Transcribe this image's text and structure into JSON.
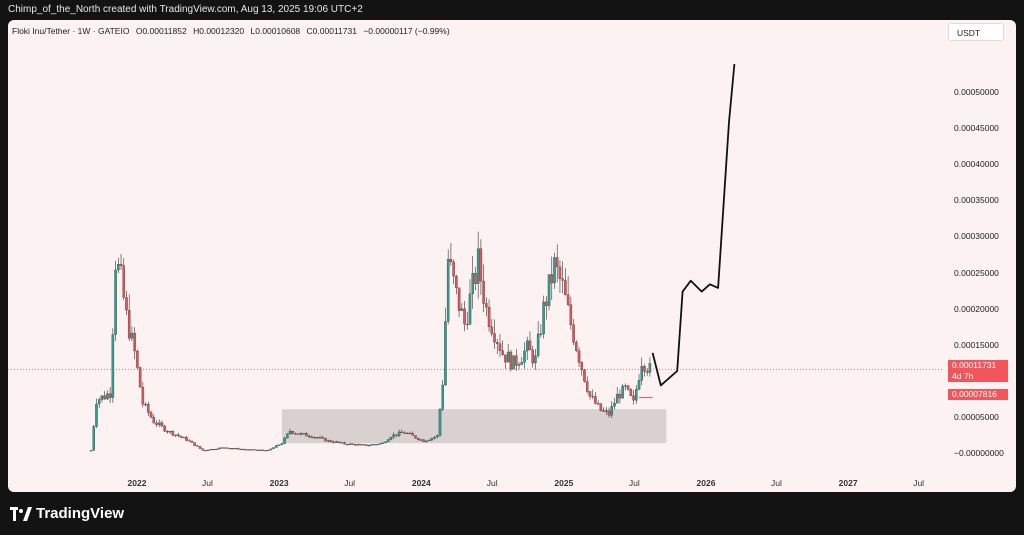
{
  "header": {
    "attribution": "Chimp_of_the_North created with TradingView.com, Aug 13, 2025 19:06 UTC+2"
  },
  "legend": {
    "symbol": "Floki Inu/Tether · 1W · GATEIO",
    "open": "O0.00011852",
    "high": "H0.00012320",
    "low": "L0.00010608",
    "close": "C0.00011731",
    "change": "−0.00000117 (−0.99%)"
  },
  "currency_button": "USDT",
  "price_tag": {
    "value": "0.00011731",
    "countdown": "4d 7h",
    "second": "0.00007816"
  },
  "brand": {
    "name": "TradingView"
  },
  "colors": {
    "up": "#2f9e8e",
    "down": "#e05358",
    "box": "#d5cccc",
    "background": "#fdf2f2"
  },
  "chart_data": {
    "type": "candlestick",
    "y_axis": {
      "range": [
        0,
        0.00055
      ],
      "ticks": [
        "0.00050000",
        "0.00045000",
        "0.00040000",
        "0.00035000",
        "0.00030000",
        "0.00025000",
        "0.00020000",
        "0.00015000",
        "0.00005000",
        "−0.00000000"
      ]
    },
    "x_axis": {
      "ticks": [
        {
          "label": "2022",
          "bold": true,
          "date": "2022-01-01"
        },
        {
          "label": "Jul",
          "bold": false,
          "date": "2022-07-01"
        },
        {
          "label": "2023",
          "bold": true,
          "date": "2023-01-01"
        },
        {
          "label": "Jul",
          "bold": false,
          "date": "2023-07-01"
        },
        {
          "label": "2024",
          "bold": true,
          "date": "2024-01-01"
        },
        {
          "label": "Jul",
          "bold": false,
          "date": "2024-07-01"
        },
        {
          "label": "2025",
          "bold": true,
          "date": "2025-01-01"
        },
        {
          "label": "Jul",
          "bold": false,
          "date": "2025-07-01"
        },
        {
          "label": "2026",
          "bold": true,
          "date": "2026-01-01"
        },
        {
          "label": "Jul",
          "bold": false,
          "date": "2026-07-01"
        },
        {
          "label": "2027",
          "bold": true,
          "date": "2027-01-01"
        },
        {
          "label": "Jul",
          "bold": false,
          "date": "2027-07-01"
        }
      ]
    },
    "series": [
      {
        "kind": "close_path",
        "points": [
          [
            "2021-09-05",
            5e-06
          ],
          [
            "2021-09-19",
            7.5e-05
          ],
          [
            "2021-10-10",
            8e-05
          ],
          [
            "2021-10-24",
            8.5e-05
          ],
          [
            "2021-11-07",
            0.00027
          ],
          [
            "2021-11-21",
            0.00024
          ],
          [
            "2021-12-05",
            0.00019
          ],
          [
            "2021-12-26",
            0.00014
          ],
          [
            "2022-01-16",
            7e-05
          ],
          [
            "2022-02-13",
            4.5e-05
          ],
          [
            "2022-03-20",
            3.2e-05
          ],
          [
            "2022-05-08",
            2e-05
          ],
          [
            "2022-06-19",
            5e-06
          ],
          [
            "2022-08-14",
            9e-06
          ],
          [
            "2022-10-09",
            6e-06
          ],
          [
            "2022-12-04",
            5e-06
          ],
          [
            "2023-01-08",
            1.5e-05
          ],
          [
            "2023-01-29",
            3.2e-05
          ],
          [
            "2023-02-19",
            2.8e-05
          ],
          [
            "2023-03-26",
            2.5e-05
          ],
          [
            "2023-05-07",
            1.8e-05
          ],
          [
            "2023-06-18",
            1.4e-05
          ],
          [
            "2023-08-13",
            1.2e-05
          ],
          [
            "2023-09-24",
            1.5e-05
          ],
          [
            "2023-10-15",
            2.5e-05
          ],
          [
            "2023-11-19",
            3e-05
          ],
          [
            "2024-01-07",
            1.8e-05
          ],
          [
            "2024-02-11",
            2.5e-05
          ],
          [
            "2024-02-25",
            0.0001
          ],
          [
            "2024-03-10",
            0.00027
          ],
          [
            "2024-03-31",
            0.00022
          ],
          [
            "2024-04-21",
            0.00018
          ],
          [
            "2024-05-26",
            0.000265
          ],
          [
            "2024-06-16",
            0.0002
          ],
          [
            "2024-07-28",
            0.00014
          ],
          [
            "2024-08-25",
            0.000125
          ],
          [
            "2024-09-29",
            0.000145
          ],
          [
            "2024-10-20",
            0.00013
          ],
          [
            "2024-11-10",
            0.0002
          ],
          [
            "2024-12-08",
            0.00026
          ],
          [
            "2024-12-29",
            0.00023
          ],
          [
            "2025-01-19",
            0.00018
          ],
          [
            "2025-02-16",
            0.00012
          ],
          [
            "2025-03-09",
            8e-05
          ],
          [
            "2025-04-06",
            6e-05
          ],
          [
            "2025-04-27",
            5.5e-05
          ],
          [
            "2025-05-18",
            8e-05
          ],
          [
            "2025-06-08",
            9e-05
          ],
          [
            "2025-06-29",
            7e-05
          ],
          [
            "2025-07-20",
            0.00013
          ],
          [
            "2025-08-10",
            0.000117
          ]
        ]
      },
      {
        "kind": "projection",
        "points": [
          [
            "2025-08-17",
            0.00014
          ],
          [
            "2025-09-07",
            9.5e-05
          ],
          [
            "2025-09-28",
            0.000105
          ],
          [
            "2025-10-19",
            0.000115
          ],
          [
            "2025-11-02",
            0.000225
          ],
          [
            "2025-11-23",
            0.00024
          ],
          [
            "2025-12-21",
            0.000225
          ],
          [
            "2026-01-11",
            0.000235
          ],
          [
            "2026-02-01",
            0.00023
          ],
          [
            "2026-03-01",
            0.00046
          ],
          [
            "2026-03-15",
            0.00054
          ]
        ]
      }
    ],
    "annotations": [
      {
        "kind": "box",
        "x0": "2023-01-08",
        "x1": "2025-09-21",
        "y0": 1.5e-05,
        "y1": 6.2e-05
      },
      {
        "kind": "hline",
        "price": 0.00011731,
        "style": "dotted"
      },
      {
        "kind": "short_line",
        "x0": "2025-07-13",
        "x1": "2025-08-17",
        "price": 7.816e-05
      }
    ]
  }
}
